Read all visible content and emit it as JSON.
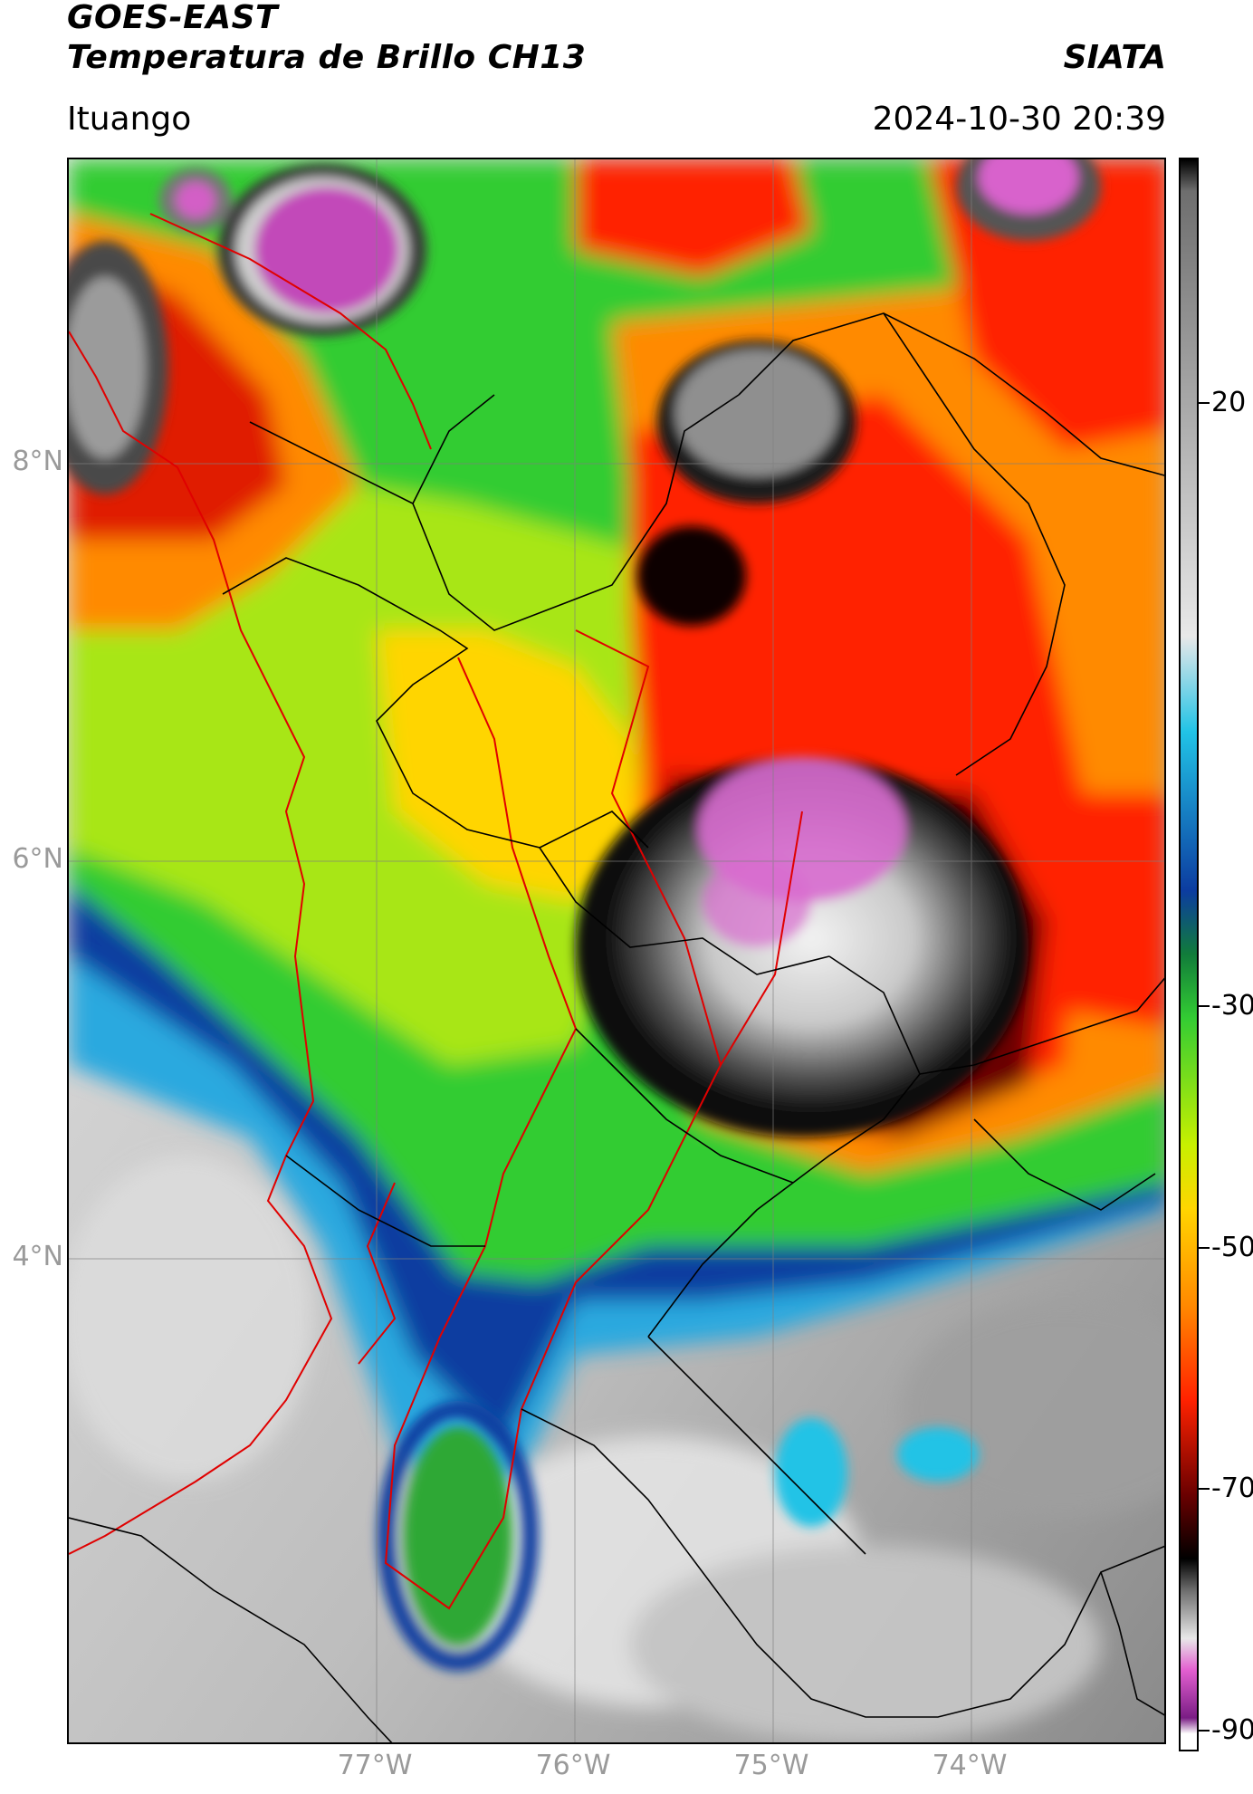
{
  "header": {
    "title_line1": "GOES-EAST",
    "title_line2": "Temperatura de Brillo CH13",
    "org": "SIATA",
    "location": "Ituango",
    "datetime": "2024-10-30 20:39"
  },
  "map": {
    "lat_labels": [
      "8°N",
      "6°N",
      "4°N"
    ],
    "lon_labels": [
      "77°W",
      "76°W",
      "75°W",
      "74°W"
    ]
  },
  "colorbar": {
    "labels": [
      "20",
      "-30",
      "-50",
      "-70",
      "-90"
    ],
    "colors": {
      "warm_gray": "#6e6e6e",
      "light_gray": "#e8e8e8",
      "cyan": "#21c3e6",
      "blue": "#0c3ca0",
      "dark_green": "#117c3a",
      "green": "#33cc33",
      "yellow_green": "#c8f000",
      "yellow": "#ffd500",
      "orange": "#ff8a00",
      "red": "#ff2200",
      "dark_red": "#6a0000",
      "black": "#000000",
      "pink": "#e35fd0",
      "purple": "#7a1d85",
      "white": "#ffffff"
    }
  }
}
